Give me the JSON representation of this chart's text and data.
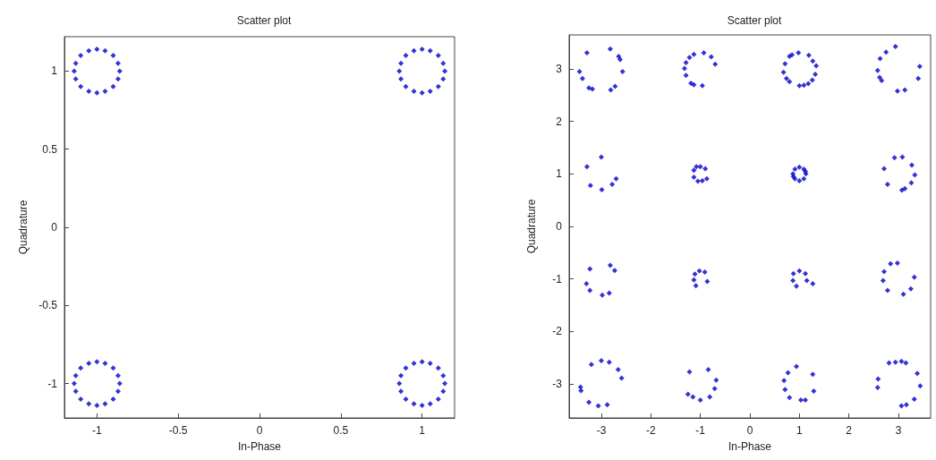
{
  "chart_data": [
    {
      "type": "scatter",
      "title": "Scatter plot",
      "xlabel": "In-Phase",
      "ylabel": "Quadrature",
      "color": "#0000cc",
      "marker": "diamond",
      "xlim": [
        -1.2,
        1.2
      ],
      "ylim": [
        -1.22,
        1.22
      ],
      "xticks": [
        -1,
        -0.5,
        0,
        0.5,
        1
      ],
      "yticks": [
        -1,
        -0.5,
        0,
        0.5,
        1
      ],
      "x": [
        1.14,
        1.13,
        1.1,
        1.05,
        1.0,
        0.95,
        0.9,
        0.87,
        0.86,
        0.87,
        0.9,
        0.95,
        1.0,
        1.05,
        1.1,
        1.13,
        -0.86,
        -0.87,
        -0.9,
        -0.95,
        -1.0,
        -1.05,
        -1.1,
        -1.13,
        -1.14,
        -1.13,
        -1.1,
        -1.05,
        -1.0,
        -0.95,
        -0.9,
        -0.87,
        -0.86,
        -0.87,
        -0.9,
        -0.95,
        -1.0,
        -1.05,
        -1.1,
        -1.13,
        -1.14,
        -1.13,
        -1.1,
        -1.05,
        -1.0,
        -0.95,
        -0.9,
        -0.87,
        1.14,
        1.13,
        1.1,
        1.05,
        1.0,
        0.95,
        0.9,
        0.87,
        0.86,
        0.87,
        0.9,
        0.95,
        1.0,
        1.05,
        1.1,
        1.13
      ],
      "values": [
        1.0,
        1.05,
        1.1,
        1.13,
        1.14,
        1.13,
        1.1,
        1.05,
        1.0,
        0.95,
        0.9,
        0.87,
        0.86,
        0.87,
        0.9,
        0.95,
        1.0,
        1.05,
        1.1,
        1.13,
        1.14,
        1.13,
        1.1,
        1.05,
        1.0,
        0.95,
        0.9,
        0.87,
        0.86,
        0.87,
        0.9,
        0.95,
        -1.0,
        -0.95,
        -0.9,
        -0.87,
        -0.86,
        -0.87,
        -0.9,
        -0.95,
        -1.0,
        -1.05,
        -1.1,
        -1.13,
        -1.14,
        -1.13,
        -1.1,
        -1.05,
        -1.0,
        -0.95,
        -0.9,
        -0.87,
        -0.86,
        -0.87,
        -0.9,
        -0.95,
        -1.0,
        -1.05,
        -1.1,
        -1.13,
        -1.14,
        -1.13,
        -1.1,
        -1.05
      ]
    },
    {
      "type": "scatter",
      "title": "Scatter plot",
      "xlabel": "In-Phase",
      "ylabel": "Quadrature",
      "color": "#0000cc",
      "marker": "diamond",
      "xlim": [
        -3.65,
        3.65
      ],
      "ylim": [
        -3.65,
        3.65
      ],
      "xticks": [
        -3,
        -2,
        -1,
        0,
        1,
        2,
        3
      ],
      "yticks": [
        -3,
        -2,
        -1,
        0,
        1,
        2,
        3
      ],
      "x": [
        -3.29,
        -2.82,
        -2.65,
        -2.62,
        -2.57,
        -2.72,
        -2.81,
        -3.18,
        -3.25,
        -3.38,
        -3.44,
        -0.93,
        -0.78,
        -0.7,
        -0.96,
        -1.13,
        -1.19,
        -1.29,
        -1.32,
        -1.29,
        -1.22,
        -1.13,
        0.98,
        1.19,
        1.27,
        1.34,
        1.32,
        1.26,
        1.18,
        1.09,
        1.0,
        0.8,
        0.74,
        0.68,
        0.71,
        0.8,
        0.85,
        2.94,
        2.75,
        2.63,
        2.58,
        2.62,
        2.66,
        2.98,
        3.13,
        3.4,
        3.43,
        -3.0,
        -3.29,
        -3.22,
        -2.99,
        -2.78,
        -2.7,
        -1.0,
        -0.9,
        -0.87,
        -0.96,
        -1.05,
        -1.13,
        -1.13,
        -1.08,
        1.13,
        1.09,
        1.0,
        0.91,
        0.87,
        0.91,
        1.0,
        1.09,
        1.12,
        0.88,
        2.92,
        3.08,
        3.27,
        3.33,
        3.26,
        3.13,
        3.07,
        2.78,
        2.71,
        -3.23,
        -2.82,
        -2.73,
        -3.3,
        -3.23,
        -2.98,
        -2.84,
        -1.02,
        -0.91,
        -0.86,
        -1.11,
        -1.13,
        -1.09,
        1.0,
        1.12,
        1.15,
        1.27,
        0.88,
        0.87,
        0.94,
        2.84,
        2.71,
        2.69,
        2.78,
        2.98,
        3.32,
        3.25,
        3.1,
        -3.2,
        -3.0,
        -2.84,
        -2.66,
        -2.59,
        -3.42,
        -3.41,
        -3.25,
        -3.06,
        -2.88,
        -1.22,
        -0.84,
        -0.68,
        -0.71,
        -0.81,
        -1.0,
        -1.15,
        -1.25,
        0.94,
        1.27,
        1.29,
        0.77,
        0.69,
        0.71,
        0.8,
        1.03,
        1.12,
        2.81,
        2.94,
        3.06,
        3.15,
        3.38,
        3.44,
        3.32,
        3.16,
        3.06,
        2.59,
        2.58
      ],
      "values": [
        3.31,
        3.38,
        3.24,
        3.18,
        2.95,
        2.67,
        2.6,
        2.62,
        2.64,
        2.82,
        2.95,
        3.31,
        3.23,
        3.09,
        2.68,
        2.7,
        2.73,
        2.88,
        3.01,
        3.12,
        3.22,
        3.28,
        3.31,
        3.26,
        3.15,
        3.06,
        2.9,
        2.79,
        2.72,
        2.69,
        2.68,
        2.76,
        2.82,
        2.94,
        3.1,
        3.24,
        3.27,
        3.43,
        3.32,
        3.2,
        2.97,
        2.84,
        2.78,
        2.58,
        2.6,
        2.82,
        3.05,
        1.32,
        1.14,
        0.78,
        0.7,
        0.8,
        0.91,
        1.14,
        1.1,
        0.91,
        0.87,
        0.86,
        0.94,
        1.07,
        1.14,
        1.0,
        1.09,
        1.13,
        1.09,
        1.0,
        0.91,
        0.87,
        0.91,
        1.05,
        0.95,
        1.31,
        1.32,
        1.17,
        0.98,
        0.83,
        0.72,
        0.69,
        0.8,
        1.1,
        -0.81,
        -0.74,
        -0.84,
        -1.09,
        -1.22,
        -1.31,
        -1.27,
        -0.85,
        -0.87,
        -1.05,
        -0.91,
        -1.02,
        -1.13,
        -0.85,
        -0.9,
        -1.03,
        -1.09,
        -0.9,
        -1.03,
        -1.14,
        -0.71,
        -0.86,
        -1.03,
        -1.22,
        -0.7,
        -0.97,
        -1.19,
        -1.29,
        -2.63,
        -2.56,
        -2.59,
        -2.73,
        -2.89,
        -3.06,
        -3.13,
        -3.35,
        -3.42,
        -3.4,
        -2.77,
        -2.73,
        -2.93,
        -3.09,
        -3.25,
        -3.31,
        -3.25,
        -3.2,
        -2.67,
        -2.82,
        -3.14,
        -2.79,
        -2.94,
        -3.11,
        -3.26,
        -3.31,
        -3.31,
        -2.6,
        -2.59,
        -2.57,
        -2.6,
        -2.8,
        -3.04,
        -3.29,
        -3.4,
        -3.42,
        -2.91,
        -3.07
      ]
    }
  ]
}
